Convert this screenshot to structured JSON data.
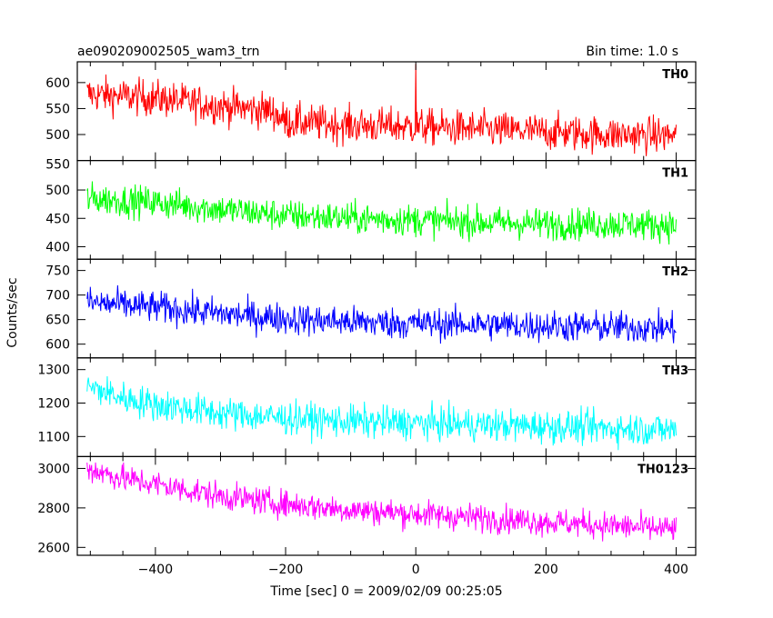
{
  "header": {
    "title": "ae090209002505_wam3_trn",
    "bin_time": "Bin time: 1.0 s"
  },
  "chart_data": {
    "type": "line",
    "xlabel": "Time [sec] 0 = 2009/02/09 00:25:05",
    "ylabel": "Counts/sec",
    "xlim": [
      -520,
      430
    ],
    "x_range": [
      -505,
      400
    ],
    "x_ticks": [
      -400,
      -200,
      0,
      200,
      400
    ],
    "x_tick_labels": [
      "−400",
      "−200",
      "0",
      "200",
      "400"
    ],
    "bin_seconds": 1.0,
    "panels": [
      {
        "name": "TH0",
        "color": "#ff0000",
        "ylim": [
          450,
          640
        ],
        "y_ticks": [
          500,
          550,
          600
        ],
        "x": [
          -505,
          -400,
          -300,
          -220,
          -200,
          -100,
          0,
          100,
          200,
          300,
          400
        ],
        "mean": [
          578,
          570,
          555,
          545,
          525,
          518,
          515,
          510,
          505,
          500,
          498
        ],
        "noise": 25,
        "spike_at": 0,
        "spike_value": 636
      },
      {
        "name": "TH1",
        "color": "#00ff00",
        "ylim": [
          378,
          552
        ],
        "y_ticks": [
          400,
          450,
          500
        ],
        "top_tick_label": "550",
        "x": [
          -505,
          -400,
          -300,
          -200,
          -100,
          0,
          100,
          200,
          300,
          400
        ],
        "mean": [
          485,
          478,
          466,
          455,
          450,
          447,
          443,
          440,
          440,
          438
        ],
        "noise": 20
      },
      {
        "name": "TH2",
        "color": "#0000ff",
        "ylim": [
          572,
          773
        ],
        "y_ticks": [
          600,
          650,
          700,
          750
        ],
        "x": [
          -505,
          -400,
          -300,
          -200,
          -100,
          0,
          100,
          200,
          300,
          400
        ],
        "mean": [
          685,
          675,
          662,
          652,
          645,
          642,
          640,
          637,
          635,
          632
        ],
        "noise": 23
      },
      {
        "name": "TH3",
        "color": "#00ffff",
        "ylim": [
          1040,
          1335
        ],
        "y_ticks": [
          1100,
          1200,
          1300
        ],
        "x": [
          -505,
          -450,
          -400,
          -300,
          -200,
          -100,
          0,
          100,
          200,
          300,
          400
        ],
        "mean": [
          1250,
          1215,
          1195,
          1170,
          1155,
          1145,
          1140,
          1135,
          1130,
          1125,
          1120
        ],
        "noise": 35
      },
      {
        "name": "TH0123",
        "color": "#ff00ff",
        "ylim": [
          2560,
          3060
        ],
        "y_ticks": [
          2600,
          2800,
          3000
        ],
        "x": [
          -505,
          -450,
          -400,
          -300,
          -200,
          -100,
          0,
          100,
          200,
          300,
          400
        ],
        "mean": [
          3000,
          2950,
          2920,
          2860,
          2820,
          2790,
          2770,
          2750,
          2730,
          2710,
          2690
        ],
        "noise": 50
      }
    ]
  }
}
